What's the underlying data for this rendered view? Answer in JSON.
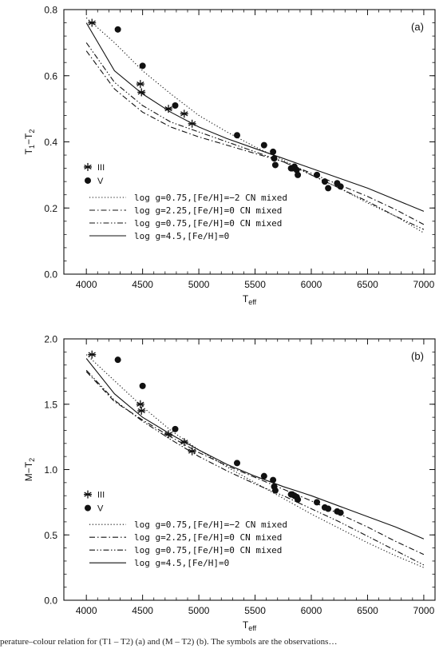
{
  "caption": "perature–colour relation for (T1 – T2) (a) and (M – T2) (b). The symbols are the observations…",
  "colors": {
    "ink": "#111111"
  },
  "chart_data": [
    {
      "type": "line",
      "panel_label": "(a)",
      "xlabel_main": "T",
      "xlabel_sub": "eff",
      "ylabel_main": "T",
      "ylabel_parts": [
        "1",
        "−T",
        "2"
      ],
      "xlim": [
        3800,
        7100
      ],
      "ylim": [
        0.0,
        0.8
      ],
      "xticks": [
        4000,
        4500,
        5000,
        5500,
        6000,
        6500,
        7000
      ],
      "yticks": [
        0.0,
        0.2,
        0.4,
        0.6,
        0.8
      ],
      "ytick_labels": [
        "0.0",
        "0.2",
        "0.4",
        "0.6",
        "0.8"
      ],
      "grid": false,
      "legend": {
        "markers": [
          {
            "symbol": "asterisk",
            "label": "III"
          },
          {
            "symbol": "dot",
            "label": "V"
          }
        ],
        "lines": [
          {
            "style": "dotted",
            "label": "log g=0.75,[Fe/H]=−2 CN mixed"
          },
          {
            "style": "dashdot",
            "label": "log g=2.25,[Fe/H]=0 CN mixed"
          },
          {
            "style": "dashdotdot",
            "label": "log g=0.75,[Fe/H]=0 CN mixed"
          },
          {
            "style": "solid",
            "label": "log g=4.5,[Fe/H]=0"
          }
        ]
      },
      "series": [
        {
          "style": "dotted",
          "x": [
            4000,
            4250,
            4500,
            4750,
            5000,
            5250,
            5500,
            5750,
            6000,
            6250,
            6500,
            6750,
            7000
          ],
          "y": [
            0.775,
            0.7,
            0.615,
            0.545,
            0.48,
            0.43,
            0.385,
            0.345,
            0.3,
            0.26,
            0.215,
            0.175,
            0.125
          ]
        },
        {
          "style": "dashdot",
          "x": [
            4000,
            4250,
            4500,
            4750,
            5000,
            5250,
            5500,
            5750,
            6000,
            6250,
            6500,
            6750,
            7000
          ],
          "y": [
            0.675,
            0.56,
            0.49,
            0.445,
            0.415,
            0.39,
            0.365,
            0.34,
            0.305,
            0.27,
            0.235,
            0.195,
            0.15
          ]
        },
        {
          "style": "dashdotdot",
          "x": [
            4000,
            4250,
            4500,
            4750,
            5000,
            5250,
            5500,
            5750,
            6000,
            6250,
            6500,
            6750,
            7000
          ],
          "y": [
            0.7,
            0.58,
            0.51,
            0.46,
            0.43,
            0.4,
            0.37,
            0.34,
            0.3,
            0.26,
            0.22,
            0.175,
            0.135
          ]
        },
        {
          "style": "solid",
          "x": [
            4000,
            4250,
            4500,
            4750,
            5000,
            5250,
            5500,
            5750,
            6000,
            6250,
            6500,
            6750,
            7000
          ],
          "y": [
            0.76,
            0.615,
            0.545,
            0.49,
            0.445,
            0.41,
            0.38,
            0.35,
            0.32,
            0.29,
            0.26,
            0.225,
            0.19
          ]
        }
      ],
      "points_III": {
        "x": [
          4050,
          4480,
          4490,
          4730,
          4870,
          4940
        ],
        "y": [
          0.76,
          0.575,
          0.55,
          0.5,
          0.485,
          0.455
        ]
      },
      "points_V": {
        "x": [
          4280,
          4500,
          4790,
          5340,
          5580,
          5660,
          5670,
          5680,
          5820,
          5830,
          5850,
          5870,
          5880,
          6050,
          6120,
          6150,
          6230,
          6260
        ],
        "y": [
          0.74,
          0.63,
          0.51,
          0.42,
          0.39,
          0.37,
          0.35,
          0.33,
          0.32,
          0.32,
          0.325,
          0.315,
          0.3,
          0.3,
          0.28,
          0.26,
          0.275,
          0.265
        ]
      }
    },
    {
      "type": "line",
      "panel_label": "(b)",
      "xlabel_main": "T",
      "xlabel_sub": "eff",
      "ylabel_main": "M",
      "ylabel_parts": [
        "−T",
        "2"
      ],
      "xlim": [
        3800,
        7100
      ],
      "ylim": [
        0.0,
        2.0
      ],
      "xticks": [
        4000,
        4500,
        5000,
        5500,
        6000,
        6500,
        7000
      ],
      "yticks": [
        0.0,
        0.5,
        1.0,
        1.5,
        2.0
      ],
      "ytick_labels": [
        "0.0",
        "0.5",
        "1.0",
        "1.5",
        "2.0"
      ],
      "grid": false,
      "legend": {
        "markers": [
          {
            "symbol": "asterisk",
            "label": "III"
          },
          {
            "symbol": "dot",
            "label": "V"
          }
        ],
        "lines": [
          {
            "style": "dotted",
            "label": "log g=0.75,[Fe/H]=−2 CN mixed"
          },
          {
            "style": "dashdot",
            "label": "log g=2.25,[Fe/H]=0 CN mixed"
          },
          {
            "style": "dashdotdot",
            "label": "log g=0.75,[Fe/H]=0 CN mixed"
          },
          {
            "style": "solid",
            "label": "log g=4.5,[Fe/H]=0"
          }
        ]
      },
      "series": [
        {
          "style": "dotted",
          "x": [
            4000,
            4250,
            4500,
            4750,
            5000,
            5250,
            5500,
            5750,
            6000,
            6250,
            6500,
            6750,
            7000
          ],
          "y": [
            1.88,
            1.68,
            1.48,
            1.3,
            1.15,
            1.02,
            0.9,
            0.78,
            0.66,
            0.55,
            0.44,
            0.34,
            0.25
          ]
        },
        {
          "style": "dashdot",
          "x": [
            4000,
            4250,
            4500,
            4750,
            5000,
            5250,
            5500,
            5750,
            6000,
            6250,
            6500,
            6750,
            7000
          ],
          "y": [
            1.75,
            1.52,
            1.38,
            1.25,
            1.13,
            1.03,
            0.94,
            0.85,
            0.76,
            0.66,
            0.56,
            0.45,
            0.35
          ]
        },
        {
          "style": "dashdotdot",
          "x": [
            4000,
            4250,
            4500,
            4750,
            5000,
            5250,
            5500,
            5750,
            6000,
            6250,
            6500,
            6750,
            7000
          ],
          "y": [
            1.76,
            1.53,
            1.37,
            1.23,
            1.1,
            0.99,
            0.89,
            0.8,
            0.7,
            0.6,
            0.49,
            0.38,
            0.27
          ]
        },
        {
          "style": "solid",
          "x": [
            4000,
            4250,
            4500,
            4750,
            5000,
            5250,
            5500,
            5750,
            6000,
            6250,
            6500,
            6750,
            7000
          ],
          "y": [
            1.85,
            1.58,
            1.4,
            1.27,
            1.15,
            1.04,
            0.95,
            0.87,
            0.8,
            0.72,
            0.64,
            0.56,
            0.47
          ]
        }
      ],
      "points_III": {
        "x": [
          4050,
          4480,
          4490,
          4730,
          4870,
          4940
        ],
        "y": [
          1.88,
          1.5,
          1.45,
          1.27,
          1.21,
          1.14
        ]
      },
      "points_V": {
        "x": [
          4280,
          4500,
          4790,
          5340,
          5580,
          5660,
          5670,
          5680,
          5820,
          5830,
          5850,
          5870,
          5880,
          6050,
          6120,
          6150,
          6230,
          6260
        ],
        "y": [
          1.84,
          1.64,
          1.31,
          1.05,
          0.95,
          0.92,
          0.87,
          0.84,
          0.81,
          0.81,
          0.8,
          0.79,
          0.77,
          0.75,
          0.71,
          0.7,
          0.68,
          0.67
        ]
      }
    }
  ]
}
